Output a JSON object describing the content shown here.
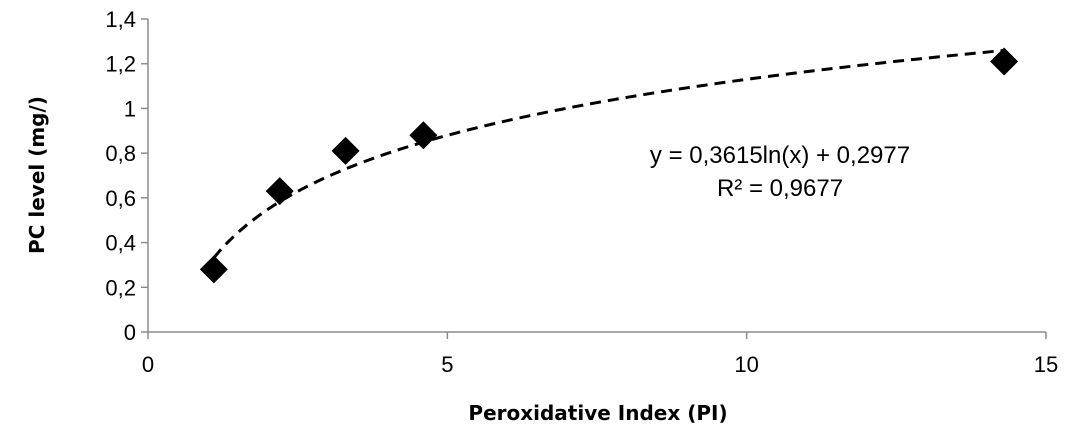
{
  "chart_data": {
    "type": "scatter",
    "title": "",
    "xlabel": "Peroxidative Index (PI)",
    "ylabel": "PC level (mg/)",
    "xlim": [
      0,
      15
    ],
    "ylim": [
      0,
      1.4
    ],
    "xticks": [
      0,
      5,
      10,
      15
    ],
    "yticks": [
      0,
      0.2,
      0.4,
      0.6,
      0.8,
      1,
      1.2,
      1.4
    ],
    "xtick_labels": [
      "0",
      "5",
      "10",
      "15"
    ],
    "ytick_labels": [
      "0",
      "0,2",
      "0,4",
      "0,6",
      "0,8",
      "1",
      "1,2",
      "1,4"
    ],
    "grid": false,
    "legend": "none",
    "marker": "diamond",
    "marker_color": "#000000",
    "series": [
      {
        "x": [
          1.1,
          2.2,
          3.3,
          4.6,
          14.3
        ],
        "y": [
          0.28,
          0.63,
          0.81,
          0.88,
          1.21
        ]
      }
    ],
    "trendline": {
      "type": "logarithmic",
      "a": 0.3615,
      "b": 0.2977,
      "x_range": [
        1.1,
        14.3
      ],
      "style": "dashed",
      "color": "#000000"
    },
    "annotations": [
      {
        "text": "y = 0,3615ln(x) + 0,2977"
      },
      {
        "text": "R² = 0,9677"
      }
    ]
  }
}
